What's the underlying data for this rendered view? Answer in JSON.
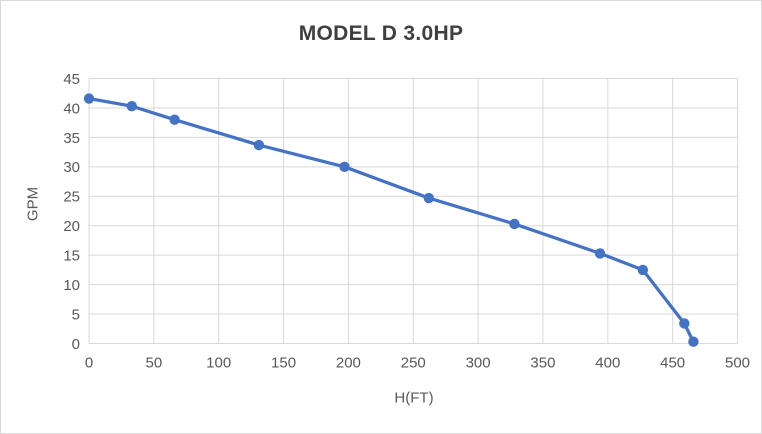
{
  "window": {
    "background": "#ffffff",
    "border_color": "#d9d9d9"
  },
  "chart_data": {
    "type": "line",
    "title": "MODEL D 3.0HP",
    "xlabel": "H(FT)",
    "ylabel": "GPM",
    "series": [
      {
        "name": "MODEL D 3.0HP",
        "x": [
          0,
          33,
          66,
          131,
          197,
          262,
          328,
          394,
          427,
          459,
          466
        ],
        "y": [
          41.6,
          40.3,
          38.0,
          33.7,
          30.0,
          24.7,
          20.3,
          15.3,
          12.5,
          3.4,
          0.3
        ]
      }
    ],
    "xlim": [
      0,
      500
    ],
    "ylim": [
      0,
      45
    ],
    "xticks": [
      0,
      50,
      100,
      150,
      200,
      250,
      300,
      350,
      400,
      450,
      500
    ],
    "yticks": [
      0,
      5,
      10,
      15,
      20,
      25,
      30,
      35,
      40,
      45
    ],
    "grid": true,
    "legend_position": "none",
    "marker": "circle",
    "colors": {
      "line": "#4472C4",
      "marker": "#4472C4",
      "grid": "#d9d9d9",
      "tick_label": "#595959",
      "axis_title": "#595959",
      "chart_title": "#3f3f3f"
    }
  }
}
